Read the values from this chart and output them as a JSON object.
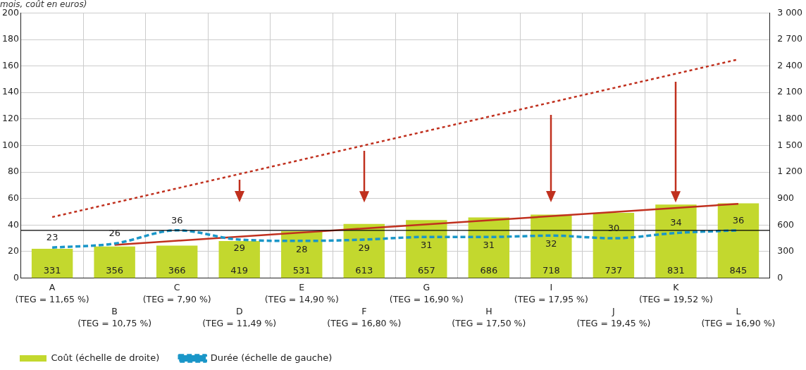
{
  "chart_data": {
    "type": "bar",
    "title": "mois, coût en euros)",
    "categories": [
      "A (TEG = 11,65 %)",
      "B (TEG = 10,75 %)",
      "C (TEG = 7,90 %)",
      "D (TEG = 11,49 %)",
      "E (TEG = 14,90 %)",
      "F (TEG = 16,80 %)",
      "G (TEG = 16,90 %)",
      "H (TEG = 17,50 %)",
      "I (TEG = 17,95 %)",
      "J (TEG = 19,45 %)",
      "K (TEG = 19,52 %)",
      "L (TEG = 16,90 %)"
    ],
    "series": [
      {
        "name": "Coût (échelle de droite)",
        "axis": "y2",
        "color": "#c3d82e",
        "values": [
          331,
          356,
          366,
          419,
          531,
          613,
          657,
          686,
          718,
          737,
          831,
          845
        ]
      },
      {
        "name": "Durée (échelle de gauche)",
        "type": "line",
        "axis": "y",
        "color": "#1a96c8",
        "line_style": "dashed",
        "values": [
          23,
          26,
          36,
          29,
          28,
          29,
          31,
          31,
          32,
          30,
          34,
          36
        ]
      },
      {
        "type": "line",
        "axis": "y",
        "color": "#c0301e",
        "line_style": "dotted",
        "data_labels": false,
        "values": [
          46,
          null,
          null,
          null,
          null,
          null,
          null,
          null,
          null,
          null,
          null,
          165
        ]
      },
      {
        "type": "line",
        "axis": "y",
        "color": "#c0301e",
        "line_style": "solid",
        "data_labels": false,
        "values": [
          null,
          25,
          null,
          null,
          null,
          null,
          null,
          null,
          null,
          null,
          null,
          56
        ]
      }
    ],
    "ylim": [
      0,
      200
    ],
    "yticks": [
      0,
      20,
      40,
      60,
      80,
      100,
      120,
      140,
      160,
      180,
      200
    ],
    "y2lim": [
      0,
      3000
    ],
    "y2ticks": [
      0,
      {
        "value": 300,
        "label": "300"
      },
      {
        "value": 600,
        "label": "600"
      },
      {
        "value": 900,
        "label": "900"
      },
      {
        "value": 1200,
        "label": "1 200"
      },
      {
        "value": 1500,
        "label": "1 500"
      },
      {
        "value": 1800,
        "label": "1 800"
      },
      {
        "value": 2100,
        "label": "2 100"
      },
      {
        "value": 2400,
        "label": "2 400"
      },
      {
        "value": 2700,
        "label": "2 700"
      },
      {
        "value": 3000,
        "label": "3 000"
      }
    ],
    "ref_lines": [
      {
        "axis": "y",
        "value": 36,
        "color": "#000000"
      }
    ],
    "data_labels": true,
    "grid": true,
    "legend": "bottom left",
    "marker": "none"
  }
}
